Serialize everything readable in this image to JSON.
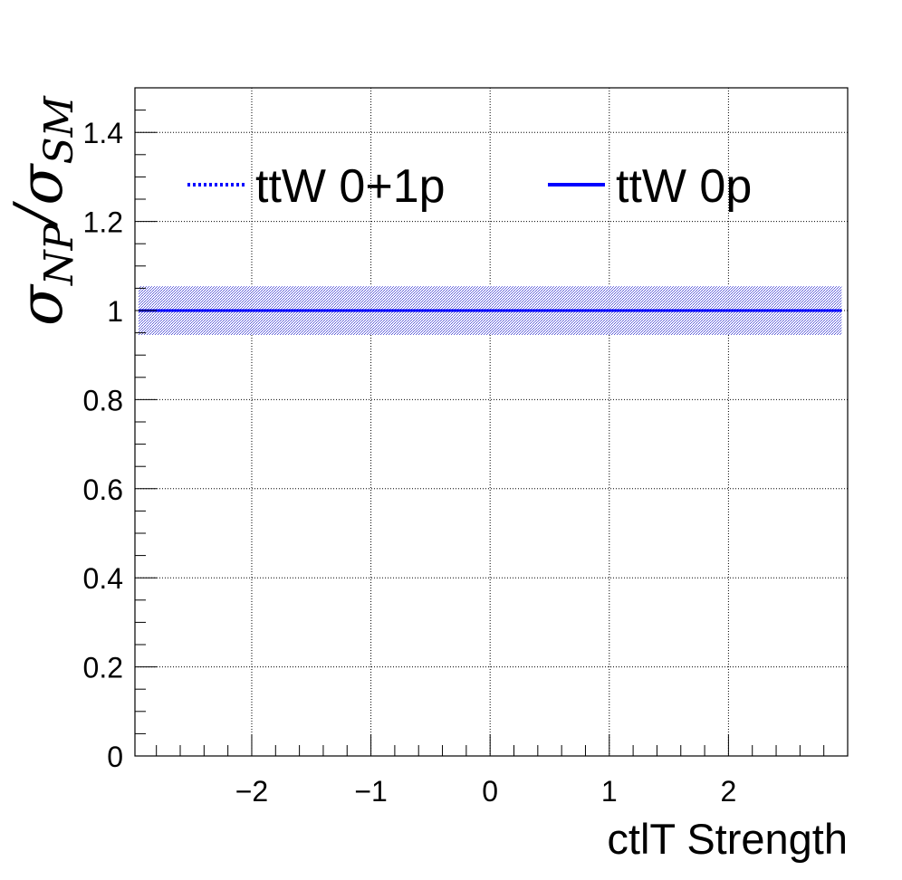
{
  "chart_data": {
    "type": "line",
    "title": "",
    "xlabel": "ctlT Strength",
    "ylabel": {
      "sym1": "σ",
      "sub1": "NP",
      "slash": "/",
      "sym2": "σ",
      "sub2": "SM"
    },
    "xlim": [
      -2.98,
      3.0
    ],
    "ylim": [
      0,
      1.5
    ],
    "x_ticks": [
      -2,
      -1,
      0,
      1,
      2
    ],
    "x_tick_labels": [
      "−2",
      "−1",
      "0",
      "1",
      "2"
    ],
    "y_ticks": [
      0,
      0.2,
      0.4,
      0.6,
      0.8,
      1,
      1.2,
      1.4
    ],
    "y_tick_labels": [
      "0",
      "0.2",
      "0.4",
      "0.6",
      "0.8",
      "1",
      "1.2",
      "1.4"
    ],
    "grid": true,
    "legend_position": "top",
    "series": [
      {
        "name": "ttW 0+1p",
        "style": "dotted",
        "color": "#0000ff",
        "x": [
          -2.95,
          2.95
        ],
        "y": [
          1.0,
          1.0
        ]
      },
      {
        "name": "ttW 0p",
        "style": "solid",
        "color": "#0000ff",
        "x": [
          -2.95,
          2.95
        ],
        "y": [
          1.0,
          1.0
        ],
        "band_low": [
          0.945,
          0.945
        ],
        "band_high": [
          1.055,
          1.055
        ],
        "band_color": "#4a4ad6"
      }
    ]
  }
}
